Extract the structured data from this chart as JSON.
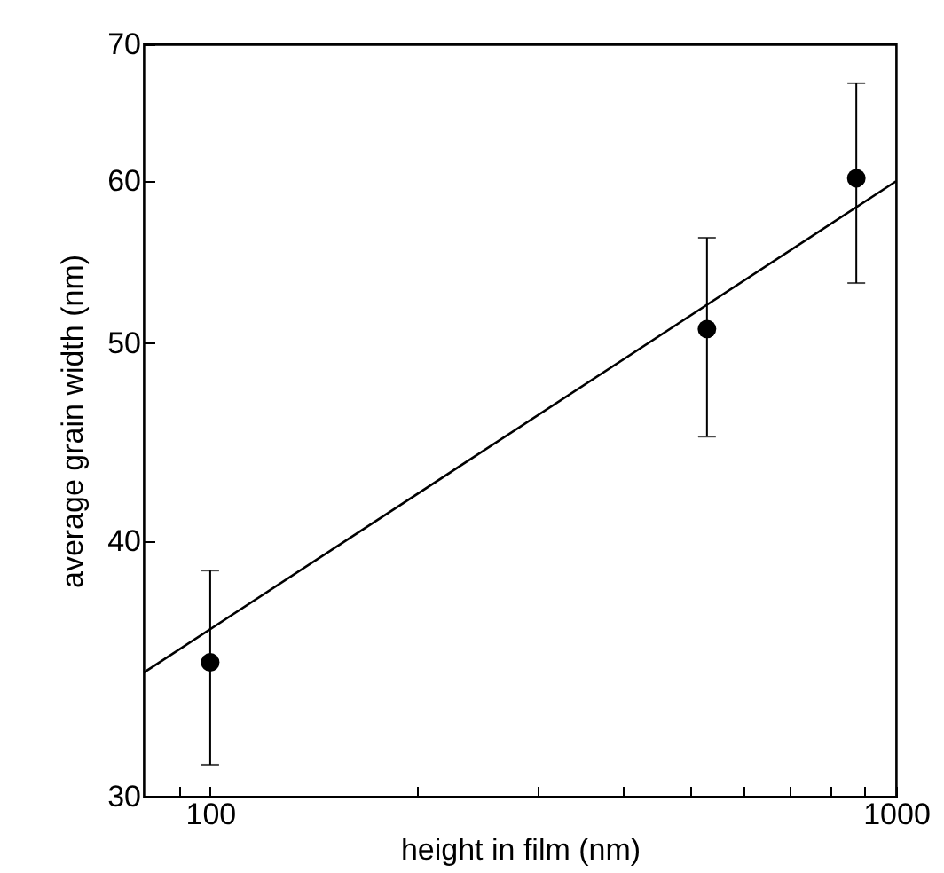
{
  "chart_data": {
    "type": "scatter",
    "xlabel": "height in film (nm)",
    "ylabel": "average grain  width (nm)",
    "log": "xy",
    "xlim": [
      80,
      1000
    ],
    "ylim": [
      30,
      70
    ],
    "xticks": [
      {
        "value": 90,
        "label": null
      },
      100,
      {
        "value": 200,
        "label": null
      },
      {
        "value": 300,
        "label": null
      },
      {
        "value": 400,
        "label": null
      },
      {
        "value": 500,
        "label": null
      },
      {
        "value": 600,
        "label": null
      },
      {
        "value": 700,
        "label": null
      },
      {
        "value": 800,
        "label": null
      },
      {
        "value": 900,
        "label": null
      },
      1000
    ],
    "yticks": [
      30,
      40,
      50,
      60,
      70
    ],
    "grid": false,
    "marker": "circle",
    "series": [
      {
        "type": "scatter",
        "color": "#000000",
        "x": [
          100,
          530,
          875
        ],
        "values": [
          34.9,
          50.8,
          60.2
        ],
        "errors": [
          [
            31.1,
            38.7
          ],
          [
            45.0,
            56.3
          ],
          [
            53.5,
            67.0
          ]
        ]
      },
      {
        "type": "line",
        "color": "#000000",
        "x": [
          80,
          1000
        ],
        "values": [
          34.5,
          60.0
        ],
        "line_style": "solid",
        "marker": "none"
      }
    ]
  }
}
